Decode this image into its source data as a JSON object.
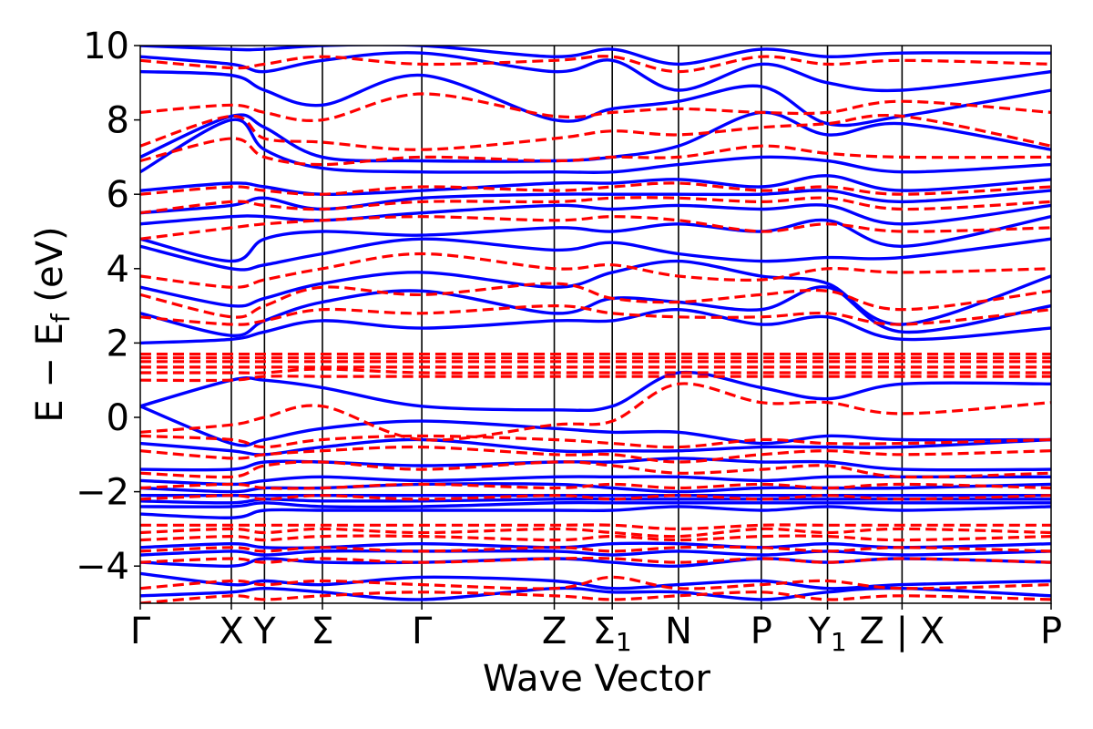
{
  "chart_data": {
    "type": "line",
    "title": "",
    "xlabel": "Wave Vector",
    "ylabel": "E − E",
    "ylabel_sub": "f",
    "ylabel_unit": " (eV)",
    "ylim": [
      -5,
      10
    ],
    "yticks": [
      -4,
      -2,
      0,
      2,
      4,
      6,
      8,
      10
    ],
    "yticklabels": [
      "−4",
      "−2",
      "0",
      "2",
      "4",
      "6",
      "8",
      "10"
    ],
    "xlim": [
      0,
      11
    ],
    "kpoints": [
      {
        "label": "Γ",
        "sub": "",
        "pos": 0
      },
      {
        "label": "X",
        "sub": "",
        "pos": 1.1
      },
      {
        "label": "Y",
        "sub": "",
        "pos": 1.5
      },
      {
        "label": "Σ",
        "sub": "",
        "pos": 2.2
      },
      {
        "label": "Γ",
        "sub": "",
        "pos": 3.4
      },
      {
        "label": "Z",
        "sub": "",
        "pos": 5.0
      },
      {
        "label": "Σ",
        "sub": "1",
        "pos": 5.7
      },
      {
        "label": "N",
        "sub": "",
        "pos": 6.5
      },
      {
        "label": "P",
        "sub": "",
        "pos": 7.5
      },
      {
        "label": "Y",
        "sub": "1",
        "pos": 8.3
      },
      {
        "label": "Z | X",
        "sub": "",
        "pos": 9.2
      },
      {
        "label": "P",
        "sub": "",
        "pos": 11
      }
    ],
    "series": [
      {
        "style": "solid",
        "color": "#0000ff",
        "bands": [
          [
            -4.8,
            -4.7,
            -4.6,
            -4.7,
            -4.9,
            -4.6,
            -4.7,
            -4.7,
            -4.9,
            -4.7,
            -4.6,
            -4.8
          ],
          [
            -4.2,
            -4.5,
            -4.4,
            -4.5,
            -4.3,
            -4.4,
            -4.6,
            -4.5,
            -4.4,
            -4.6,
            -4.5,
            -4.4
          ],
          [
            -3.9,
            -4.0,
            -3.8,
            -3.9,
            -3.9,
            -3.8,
            -3.9,
            -4.0,
            -3.8,
            -3.9,
            -3.8,
            -3.9
          ],
          [
            -3.7,
            -3.6,
            -3.7,
            -3.6,
            -3.6,
            -3.6,
            -3.7,
            -3.6,
            -3.7,
            -3.6,
            -3.7,
            -3.6
          ],
          [
            -3.5,
            -3.4,
            -3.5,
            -3.5,
            -3.4,
            -3.5,
            -3.4,
            -3.4,
            -3.5,
            -3.4,
            -3.5,
            -3.4
          ],
          [
            -2.6,
            -2.7,
            -2.5,
            -2.5,
            -2.5,
            -2.5,
            -2.5,
            -2.4,
            -2.5,
            -2.4,
            -2.5,
            -2.4
          ],
          [
            -2.4,
            -2.4,
            -2.3,
            -2.4,
            -2.4,
            -2.3,
            -2.3,
            -2.3,
            -2.3,
            -2.3,
            -2.3,
            -2.3
          ],
          [
            -2.25,
            -2.3,
            -2.2,
            -2.25,
            -2.25,
            -2.2,
            -2.2,
            -2.2,
            -2.2,
            -2.2,
            -2.2,
            -2.2
          ],
          [
            -2.1,
            -2.1,
            -2.1,
            -2.1,
            -2.1,
            -2.1,
            -2.1,
            -2.1,
            -2.1,
            -2.1,
            -2.1,
            -2.1
          ],
          [
            -1.9,
            -2.0,
            -1.9,
            -1.9,
            -1.8,
            -1.8,
            -1.9,
            -2.0,
            -1.9,
            -1.9,
            -1.9,
            -1.8
          ],
          [
            -1.7,
            -1.8,
            -1.7,
            -1.6,
            -1.7,
            -1.6,
            -1.6,
            -1.6,
            -1.7,
            -1.6,
            -1.6,
            -1.6
          ],
          [
            -1.4,
            -1.4,
            -1.2,
            -1.2,
            -1.3,
            -1.2,
            -1.2,
            -1.1,
            -1.2,
            -1.2,
            -1.4,
            -1.4
          ],
          [
            -0.7,
            -0.9,
            -1.0,
            -0.8,
            -0.6,
            -0.9,
            -0.9,
            -0.9,
            -0.8,
            -0.8,
            -0.8,
            -0.6
          ],
          [
            0.3,
            -0.7,
            -0.6,
            -0.3,
            -0.1,
            -0.3,
            -0.4,
            -0.4,
            -0.7,
            -0.5,
            -0.6,
            -0.6
          ],
          [
            0.3,
            1.0,
            1.0,
            0.8,
            0.3,
            0.2,
            0.3,
            1.2,
            0.8,
            0.5,
            0.9,
            0.9
          ],
          [
            2.0,
            2.1,
            2.3,
            2.6,
            2.4,
            2.6,
            2.6,
            2.9,
            2.5,
            2.7,
            2.1,
            2.4
          ],
          [
            2.8,
            2.2,
            2.6,
            3.1,
            3.4,
            2.8,
            3.2,
            3.1,
            2.9,
            3.5,
            2.3,
            3.0
          ],
          [
            3.5,
            3.0,
            3.2,
            3.6,
            3.9,
            3.5,
            3.9,
            4.2,
            3.8,
            3.6,
            2.5,
            3.8
          ],
          [
            4.6,
            4.0,
            4.1,
            4.4,
            4.8,
            4.5,
            4.7,
            4.4,
            4.2,
            4.3,
            4.3,
            4.8
          ],
          [
            4.8,
            4.2,
            4.8,
            5.0,
            4.9,
            5.1,
            5.0,
            5.2,
            5.0,
            5.3,
            4.6,
            5.4
          ],
          [
            5.2,
            5.4,
            5.4,
            5.3,
            5.5,
            5.7,
            5.6,
            5.7,
            5.6,
            5.7,
            5.2,
            5.7
          ],
          [
            5.5,
            5.7,
            5.9,
            5.6,
            5.9,
            6.0,
            6.0,
            6.0,
            6.0,
            6.1,
            5.8,
            6.1
          ],
          [
            6.1,
            6.3,
            6.2,
            6.0,
            6.1,
            6.3,
            6.3,
            6.4,
            6.2,
            6.5,
            6.1,
            6.4
          ],
          [
            6.6,
            8.0,
            7.2,
            6.7,
            6.6,
            6.6,
            6.6,
            6.8,
            7.0,
            6.9,
            6.6,
            6.8
          ],
          [
            7.0,
            8.1,
            7.8,
            7.0,
            6.9,
            6.9,
            7.0,
            7.3,
            8.2,
            7.6,
            7.9,
            7.2
          ],
          [
            9.3,
            9.2,
            8.8,
            8.4,
            9.2,
            8.0,
            8.3,
            8.5,
            8.9,
            7.9,
            8.1,
            8.8
          ],
          [
            9.7,
            9.5,
            9.3,
            9.6,
            9.8,
            9.3,
            9.6,
            8.8,
            9.5,
            9.0,
            8.8,
            9.3
          ],
          [
            10.0,
            9.9,
            9.9,
            10.0,
            10.0,
            9.7,
            9.9,
            9.5,
            9.9,
            9.7,
            9.8,
            9.8
          ]
        ]
      },
      {
        "style": "dashed",
        "color": "#ff0000",
        "bands": [
          [
            -5.0,
            -4.8,
            -4.9,
            -4.8,
            -4.7,
            -4.8,
            -4.9,
            -4.8,
            -4.7,
            -4.9,
            -4.8,
            -4.9
          ],
          [
            -4.6,
            -4.4,
            -4.5,
            -4.4,
            -4.5,
            -4.6,
            -4.3,
            -4.6,
            -4.5,
            -4.4,
            -4.6,
            -4.5
          ],
          [
            -3.9,
            -3.8,
            -3.9,
            -3.8,
            -3.9,
            -3.8,
            -3.8,
            -3.9,
            -3.8,
            -3.9,
            -3.8,
            -3.9
          ],
          [
            -3.6,
            -3.5,
            -3.6,
            -3.5,
            -3.6,
            -3.5,
            -3.6,
            -3.5,
            -3.5,
            -3.6,
            -3.5,
            -3.6
          ],
          [
            -3.3,
            -3.2,
            -3.3,
            -3.2,
            -3.2,
            -3.3,
            -3.2,
            -3.3,
            -3.2,
            -3.2,
            -3.3,
            -3.2
          ],
          [
            -3.1,
            -3.0,
            -3.1,
            -3.0,
            -3.1,
            -3.0,
            -3.1,
            -3.2,
            -3.0,
            -3.1,
            -3.0,
            -3.1
          ],
          [
            -2.9,
            -2.9,
            -2.9,
            -2.9,
            -2.9,
            -2.9,
            -2.9,
            -3.0,
            -2.9,
            -2.9,
            -2.9,
            -2.9
          ],
          [
            -2.2,
            -2.1,
            -2.2,
            -2.1,
            -2.2,
            -2.1,
            -2.2,
            -2.1,
            -2.2,
            -2.1,
            -2.2,
            -2.1
          ],
          [
            -1.9,
            -1.8,
            -1.9,
            -1.9,
            -1.8,
            -1.9,
            -1.8,
            -1.9,
            -1.8,
            -1.9,
            -1.8,
            -1.9
          ],
          [
            -1.5,
            -1.6,
            -1.3,
            -1.2,
            -1.4,
            -1.2,
            -1.3,
            -1.5,
            -1.4,
            -1.3,
            -1.6,
            -1.5
          ],
          [
            -0.9,
            -1.1,
            -1.0,
            -0.9,
            -0.8,
            -1.0,
            -1.0,
            -1.2,
            -1.0,
            -0.9,
            -1.0,
            -0.9
          ],
          [
            -0.5,
            -0.6,
            -0.8,
            -0.6,
            -0.5,
            -0.6,
            -0.7,
            -0.8,
            -0.6,
            -0.7,
            -0.7,
            -0.6
          ],
          [
            -0.4,
            -0.2,
            0.0,
            0.3,
            -0.6,
            -0.2,
            -0.1,
            0.9,
            0.4,
            0.4,
            0.1,
            0.4
          ],
          [
            1.0,
            1.0,
            1.1,
            1.1,
            1.1,
            1.1,
            1.1,
            1.1,
            1.1,
            1.1,
            1.1,
            1.1
          ],
          [
            1.2,
            1.2,
            1.2,
            1.3,
            1.2,
            1.2,
            1.2,
            1.2,
            1.2,
            1.2,
            1.2,
            1.2
          ],
          [
            1.35,
            1.35,
            1.35,
            1.35,
            1.35,
            1.35,
            1.35,
            1.35,
            1.35,
            1.35,
            1.35,
            1.35
          ],
          [
            1.5,
            1.5,
            1.5,
            1.5,
            1.5,
            1.5,
            1.5,
            1.5,
            1.5,
            1.5,
            1.5,
            1.5
          ],
          [
            1.6,
            1.6,
            1.6,
            1.6,
            1.6,
            1.6,
            1.6,
            1.6,
            1.6,
            1.6,
            1.6,
            1.6
          ],
          [
            1.7,
            1.7,
            1.7,
            1.7,
            1.7,
            1.7,
            1.7,
            1.7,
            1.7,
            1.7,
            1.7,
            1.7
          ],
          [
            2.7,
            2.5,
            2.6,
            2.9,
            2.8,
            3.0,
            2.8,
            2.7,
            2.7,
            2.8,
            2.5,
            2.9
          ],
          [
            3.3,
            2.7,
            3.0,
            3.5,
            3.3,
            3.6,
            3.2,
            3.1,
            3.3,
            3.4,
            2.9,
            3.4
          ],
          [
            3.8,
            3.5,
            3.7,
            4.0,
            4.4,
            4.0,
            4.1,
            3.8,
            3.7,
            4.0,
            3.9,
            4.0
          ],
          [
            4.8,
            5.1,
            5.2,
            5.3,
            5.4,
            5.3,
            5.4,
            5.3,
            5.0,
            5.2,
            5.0,
            5.1
          ],
          [
            5.5,
            5.8,
            5.7,
            5.6,
            5.8,
            5.8,
            5.9,
            5.9,
            5.8,
            5.9,
            5.6,
            5.8
          ],
          [
            6.0,
            6.2,
            6.1,
            6.0,
            6.2,
            6.1,
            6.2,
            6.3,
            6.1,
            6.2,
            6.0,
            6.2
          ],
          [
            6.9,
            7.5,
            7.0,
            6.8,
            7.0,
            6.9,
            7.0,
            7.0,
            7.3,
            7.1,
            7.0,
            7.0
          ],
          [
            7.3,
            8.1,
            7.5,
            7.4,
            7.2,
            7.5,
            7.7,
            7.6,
            7.8,
            7.9,
            8.1,
            7.3
          ],
          [
            8.2,
            8.4,
            8.2,
            8.0,
            8.7,
            8.1,
            8.2,
            8.3,
            8.2,
            8.2,
            8.5,
            8.2
          ],
          [
            9.6,
            9.4,
            9.5,
            9.7,
            9.5,
            9.6,
            9.7,
            9.3,
            9.7,
            9.5,
            9.6,
            9.5
          ]
        ]
      }
    ]
  }
}
